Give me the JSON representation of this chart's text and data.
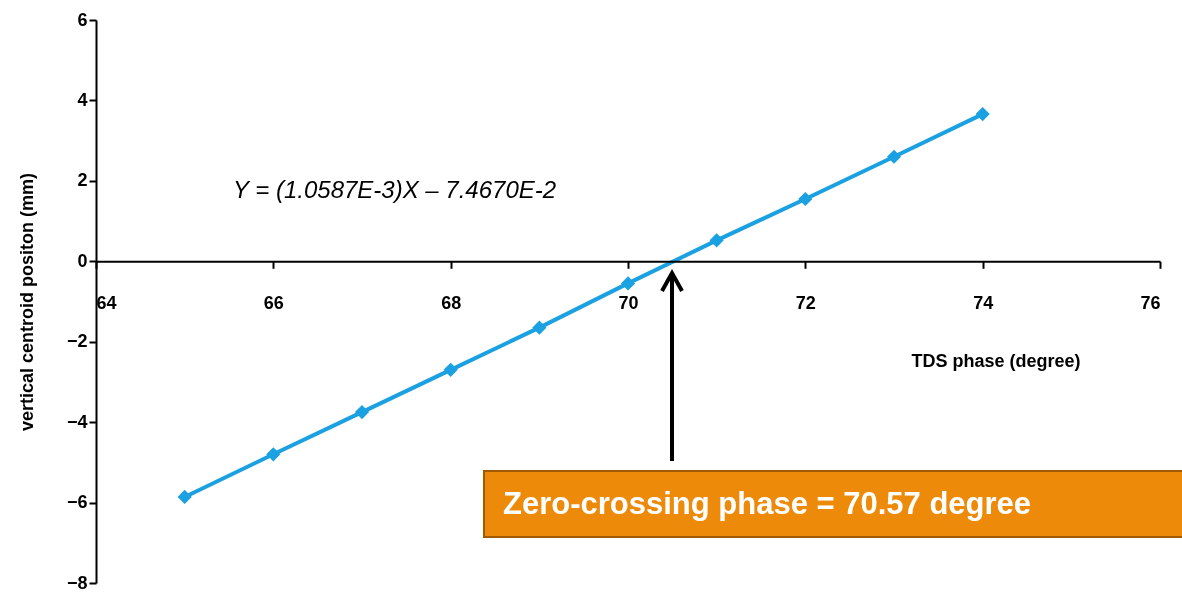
{
  "chart_data": {
    "type": "line",
    "xlabel": "TDS phase (degree)",
    "ylabel": "vertical centroid positon (mm)",
    "x": [
      65,
      66,
      67,
      68,
      69,
      70,
      71,
      72,
      73,
      74
    ],
    "values": [
      -5.86,
      -4.8,
      -3.75,
      -2.7,
      -1.65,
      -0.55,
      0.52,
      1.55,
      2.6,
      3.66
    ],
    "color": "#1ba1e2",
    "marker": "diamond",
    "line_style": "solid",
    "grid": false,
    "xlim": [
      64,
      76
    ],
    "xticks": [
      64,
      66,
      68,
      70,
      72,
      74,
      76
    ],
    "ylim": [
      -8,
      6
    ],
    "yticks": [
      -8,
      -6,
      -4,
      -2,
      0,
      2,
      4,
      6
    ],
    "annotations": [
      "Y = (1.0587E-3)X – 7.4670E-2",
      "Zero-crossing phase = 70.57 degree"
    ]
  }
}
